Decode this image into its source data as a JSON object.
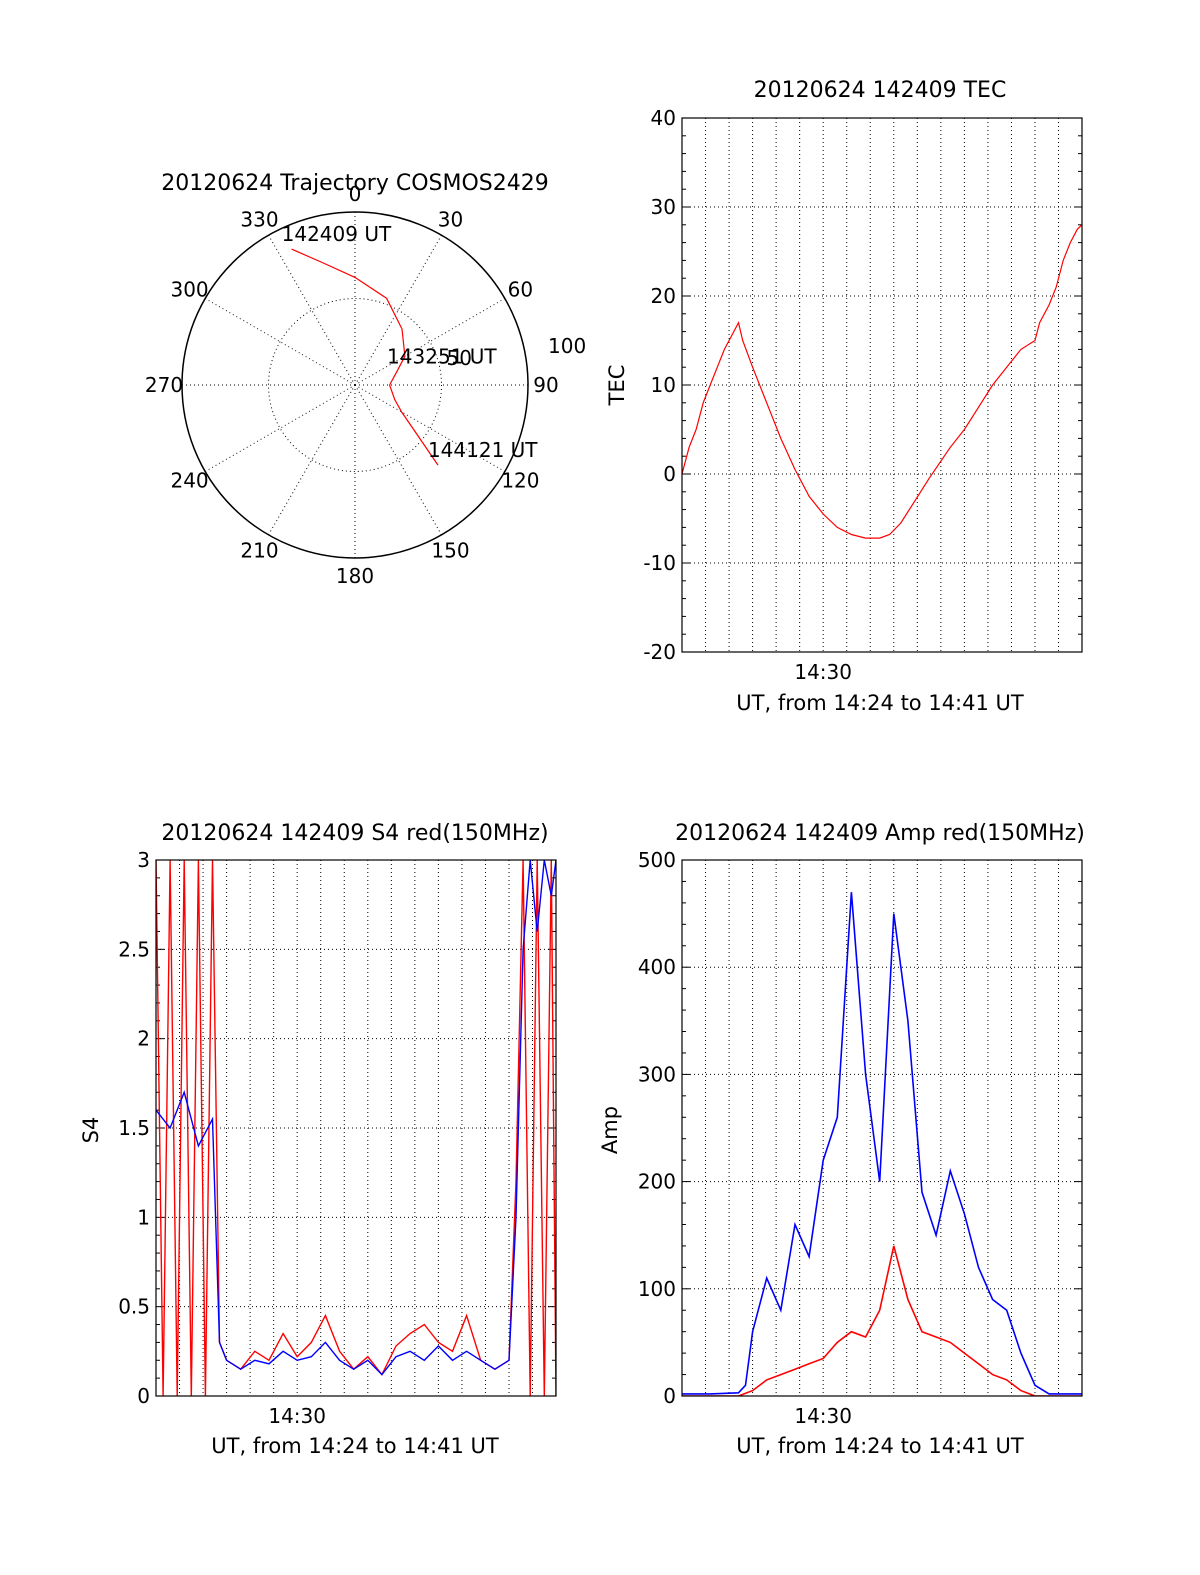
{
  "colors": {
    "red": "#ff0000",
    "blue": "#0000ff",
    "axis": "#000000"
  },
  "chart_data": [
    {
      "type": "polar-trajectory",
      "title": "20120624 Trajectory COSMOS2429",
      "azimuth_labels": [
        "0",
        "30",
        "60",
        "90",
        "120",
        "150",
        "180",
        "210",
        "240",
        "270",
        "300",
        "330"
      ],
      "elevation_labels": [
        "50",
        "100"
      ],
      "points": [
        {
          "az": 335,
          "el": 12
        },
        {
          "az": 345,
          "el": 24
        },
        {
          "az": 0,
          "el": 34
        },
        {
          "az": 20,
          "el": 42
        },
        {
          "az": 40,
          "el": 52
        },
        {
          "az": 60,
          "el": 60
        },
        {
          "az": 72,
          "el": 67
        },
        {
          "az": 90,
          "el": 72
        },
        {
          "az": 110,
          "el": 68
        },
        {
          "az": 120,
          "el": 62
        },
        {
          "az": 134,
          "el": 30
        }
      ],
      "annotations": [
        {
          "text": "142409 UT",
          "az": 335,
          "el": 12
        },
        {
          "text": "143251 UT",
          "az": 72,
          "el": 67
        },
        {
          "text": "144121 UT",
          "az": 134,
          "el": 30
        }
      ]
    },
    {
      "type": "line",
      "title": "20120624 142409 TEC",
      "xlabel": "UT, from 14:24 to 14:41 UT",
      "ylabel": "TEC",
      "xlim": [
        14.4,
        14.6833
      ],
      "ylim": [
        -20,
        40
      ],
      "yticks": [
        "-20",
        "-10",
        "0",
        "10",
        "20",
        "30",
        "40"
      ],
      "xticks": [
        {
          "value": 14.5,
          "label": "14:30"
        }
      ],
      "grid": true,
      "series": [
        {
          "color": "#ff0000",
          "x": [
            14.4,
            14.405,
            14.41,
            14.415,
            14.42,
            14.425,
            14.43,
            14.435,
            14.44,
            14.443,
            14.45,
            14.46,
            14.47,
            14.48,
            14.49,
            14.5,
            14.51,
            14.52,
            14.53,
            14.54,
            14.547,
            14.555,
            14.565,
            14.575,
            14.59,
            14.6,
            14.61,
            14.62,
            14.63,
            14.64,
            14.65,
            14.6533,
            14.66,
            14.665,
            14.67,
            14.675,
            14.68,
            14.6833
          ],
          "y": [
            0,
            3,
            5,
            8,
            10,
            12,
            14,
            15.5,
            17,
            15,
            12,
            8,
            4,
            0.5,
            -2.5,
            -4.5,
            -6,
            -6.8,
            -7.2,
            -7.2,
            -6.8,
            -5.5,
            -3,
            -0.5,
            3,
            5,
            7.5,
            10,
            12,
            14,
            15,
            17,
            19,
            21,
            24,
            26,
            27.5,
            28
          ]
        }
      ]
    },
    {
      "type": "line",
      "title": "20120624 142409 S4 red(150MHz)",
      "xlabel": "UT, from 14:24 to 14:41 UT",
      "ylabel": "S4",
      "xlim": [
        14.4,
        14.6833
      ],
      "ylim": [
        0,
        3
      ],
      "yticks": [
        "0",
        "0.5",
        "1",
        "1.5",
        "2",
        "2.5",
        "3"
      ],
      "xticks": [
        {
          "value": 14.5,
          "label": "14:30"
        }
      ],
      "grid": true,
      "series": [
        {
          "color": "#ff0000",
          "x": [
            14.4,
            14.405,
            14.41,
            14.415,
            14.42,
            14.425,
            14.43,
            14.435,
            14.44,
            14.445,
            14.45,
            14.46,
            14.47,
            14.48,
            14.49,
            14.5,
            14.51,
            14.52,
            14.53,
            14.54,
            14.55,
            14.56,
            14.57,
            14.58,
            14.59,
            14.6,
            14.61,
            14.62,
            14.63,
            14.64,
            14.65,
            14.655,
            14.66,
            14.665,
            14.67,
            14.675,
            14.68,
            14.6833
          ],
          "y": [
            3,
            0,
            3,
            0,
            3,
            0,
            3,
            0,
            3,
            0.3,
            0.2,
            0.15,
            0.25,
            0.2,
            0.35,
            0.22,
            0.3,
            0.45,
            0.25,
            0.15,
            0.22,
            0.12,
            0.28,
            0.35,
            0.4,
            0.3,
            0.25,
            0.45,
            0.2,
            0.15,
            0.2,
            1.2,
            3,
            0,
            3,
            0,
            3,
            0
          ]
        },
        {
          "color": "#0000ff",
          "x": [
            14.4,
            14.41,
            14.42,
            14.43,
            14.44,
            14.445,
            14.45,
            14.46,
            14.47,
            14.48,
            14.49,
            14.5,
            14.51,
            14.52,
            14.53,
            14.54,
            14.55,
            14.56,
            14.57,
            14.58,
            14.59,
            14.6,
            14.61,
            14.62,
            14.63,
            14.64,
            14.65,
            14.655,
            14.66,
            14.665,
            14.67,
            14.675,
            14.68,
            14.6833
          ],
          "y": [
            1.6,
            1.5,
            1.7,
            1.4,
            1.55,
            0.3,
            0.2,
            0.15,
            0.2,
            0.18,
            0.25,
            0.2,
            0.22,
            0.3,
            0.2,
            0.15,
            0.2,
            0.12,
            0.22,
            0.25,
            0.2,
            0.28,
            0.2,
            0.25,
            0.2,
            0.15,
            0.2,
            1.0,
            2.5,
            3,
            2.6,
            3,
            2.8,
            3
          ]
        }
      ]
    },
    {
      "type": "line",
      "title": "20120624 142409 Amp red(150MHz)",
      "xlabel": "UT, from 14:24 to 14:41 UT",
      "ylabel": "Amp",
      "xlim": [
        14.4,
        14.6833
      ],
      "ylim": [
        0,
        500
      ],
      "yticks": [
        "0",
        "100",
        "200",
        "300",
        "400",
        "500"
      ],
      "xticks": [
        {
          "value": 14.5,
          "label": "14:30"
        }
      ],
      "grid": true,
      "series": [
        {
          "color": "#0000ff",
          "x": [
            14.4,
            14.42,
            14.44,
            14.445,
            14.45,
            14.46,
            14.47,
            14.48,
            14.49,
            14.5,
            14.51,
            14.52,
            14.53,
            14.54,
            14.55,
            14.56,
            14.57,
            14.58,
            14.59,
            14.6,
            14.61,
            14.62,
            14.63,
            14.64,
            14.65,
            14.66,
            14.6833
          ],
          "y": [
            2,
            2,
            3,
            10,
            60,
            110,
            80,
            160,
            130,
            220,
            260,
            470,
            300,
            200,
            450,
            350,
            190,
            150,
            210,
            170,
            120,
            90,
            80,
            40,
            10,
            2,
            2
          ]
        },
        {
          "color": "#ff0000",
          "x": [
            14.4,
            14.44,
            14.45,
            14.46,
            14.47,
            14.48,
            14.49,
            14.5,
            14.51,
            14.52,
            14.53,
            14.54,
            14.55,
            14.56,
            14.57,
            14.58,
            14.59,
            14.6,
            14.61,
            14.62,
            14.63,
            14.64,
            14.65,
            14.6833
          ],
          "y": [
            0,
            0,
            5,
            15,
            20,
            25,
            30,
            35,
            50,
            60,
            55,
            80,
            140,
            90,
            60,
            55,
            50,
            40,
            30,
            20,
            15,
            5,
            0,
            0
          ]
        }
      ]
    }
  ]
}
